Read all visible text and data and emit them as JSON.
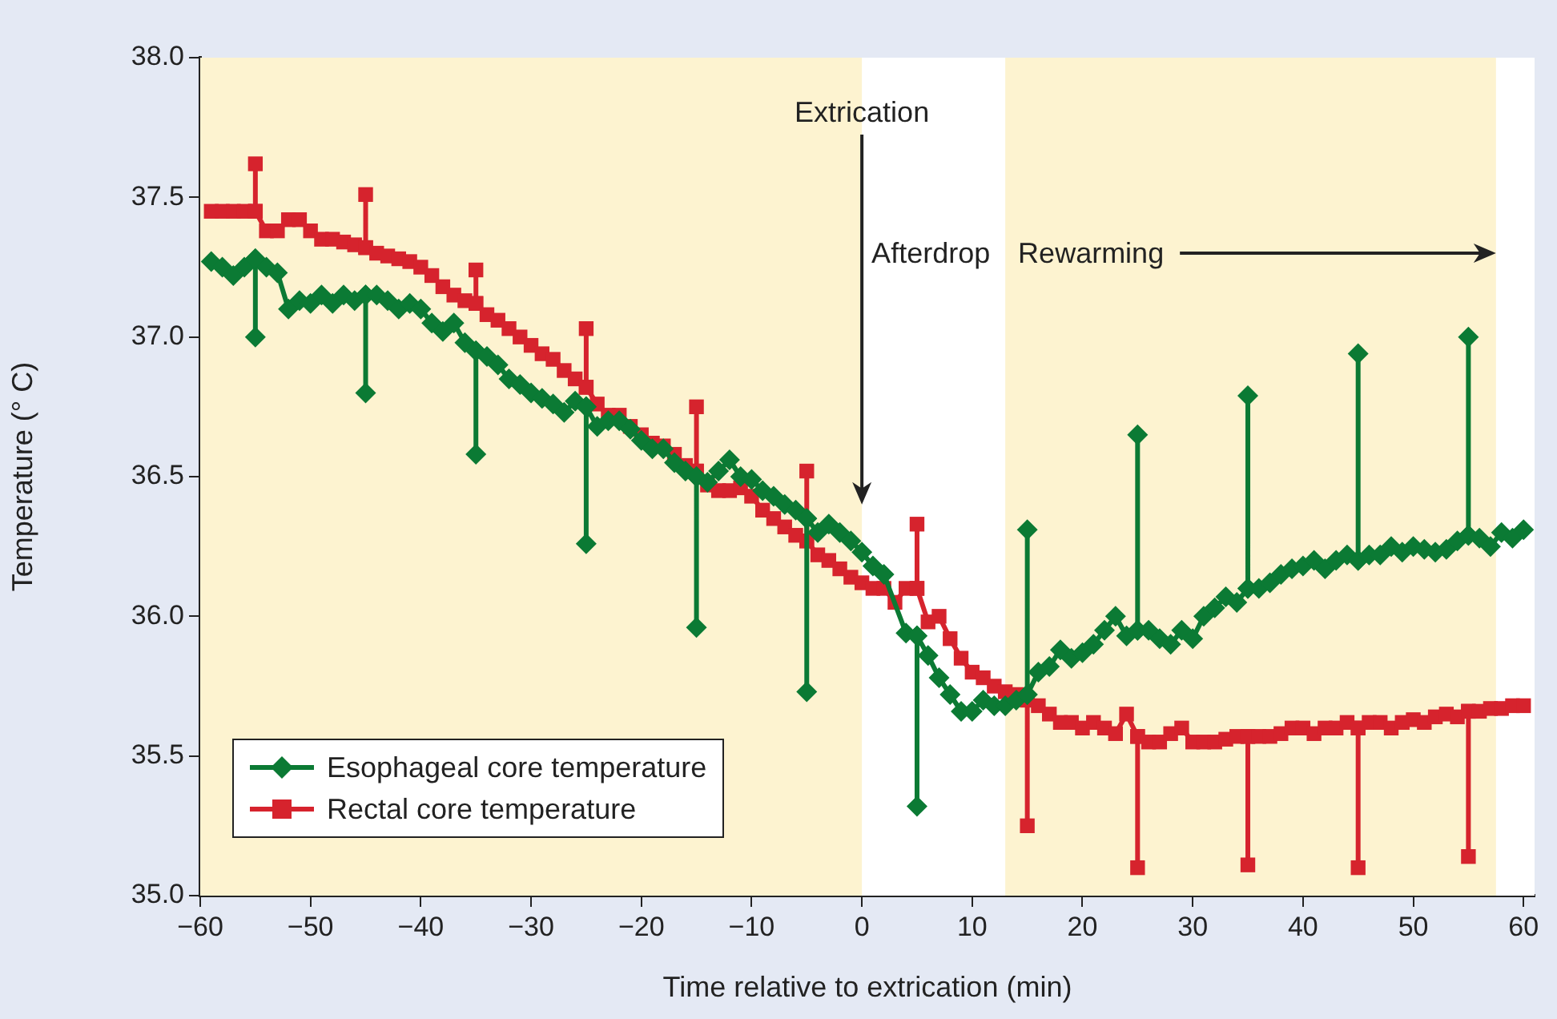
{
  "chart_data": {
    "type": "line",
    "xlabel": "Time relative to extrication (min)",
    "ylabel": "Temperature (° C)",
    "xlim": [
      -60,
      61
    ],
    "xticks": [
      {
        "value": -60,
        "label": "−60"
      },
      {
        "value": -50,
        "label": "−50"
      },
      {
        "value": -40,
        "label": "−40"
      },
      {
        "value": -30,
        "label": "−30"
      },
      {
        "value": -20,
        "label": "−20"
      },
      {
        "value": -10,
        "label": "−10"
      },
      0,
      10,
      20,
      30,
      40,
      50,
      60
    ],
    "ylim": [
      35,
      38
    ],
    "yticks": [
      {
        "value": 35,
        "label": "35.0"
      },
      {
        "value": 35.5,
        "label": "35.5"
      },
      {
        "value": 36,
        "label": "36.0"
      },
      {
        "value": 36.5,
        "label": "36.5"
      },
      {
        "value": 37,
        "label": "37.0"
      },
      {
        "value": 37.5,
        "label": "37.5"
      },
      {
        "value": 38,
        "label": "38.0"
      }
    ],
    "grid": false,
    "legend": "bottom left",
    "line_style": "solid",
    "bands": [
      {
        "axis": "x",
        "from": -60,
        "to": 0,
        "color": "#fdf3d0"
      },
      {
        "axis": "x",
        "from": 13,
        "to": 57.5,
        "label": "Rewarming",
        "color": "#fdf3d0"
      }
    ],
    "annotations": [
      {
        "text": "Extrication",
        "x": 0,
        "y": 36.4
      },
      "Afterdrop"
    ],
    "series": [
      {
        "name": "Esophageal core temperature",
        "color": "#0b7a34",
        "marker": "diamond",
        "x": [
          -59,
          -58,
          -57,
          -56,
          -55,
          -55,
          -55,
          -54,
          -53,
          -52,
          -51,
          -50,
          -49,
          -48,
          -47,
          -46,
          -45,
          -45,
          -45,
          -44,
          -43,
          -42,
          -41,
          -40,
          -39,
          -38,
          -37,
          -36,
          -35,
          -35,
          -35,
          -34,
          -33,
          -32,
          -31,
          -30,
          -29,
          -28,
          -27,
          -26,
          -25,
          -25,
          -25,
          -24,
          -23,
          -22,
          -21,
          -20,
          -19,
          -18,
          -17,
          -16,
          -15,
          -15,
          -15,
          -14,
          -13,
          -12,
          -11,
          -10,
          -9,
          -8,
          -7,
          -6,
          -5,
          -5,
          -5,
          -4,
          -3,
          -2,
          -1,
          0,
          1,
          2,
          4,
          5,
          5,
          5,
          6,
          7,
          8,
          9,
          10,
          11,
          12,
          13,
          14,
          15,
          15,
          15,
          16,
          17,
          18,
          19,
          20,
          21,
          22,
          23,
          24,
          25,
          25,
          25,
          26,
          27,
          28,
          29,
          30,
          31,
          32,
          33,
          34,
          35,
          35,
          35,
          36,
          37,
          38,
          39,
          40,
          41,
          42,
          43,
          44,
          45,
          45,
          45,
          46,
          47,
          48,
          49,
          50,
          51,
          52,
          53,
          54,
          55,
          55,
          55,
          56,
          57,
          58,
          59,
          60
        ],
        "values": [
          37.27,
          37.25,
          37.22,
          37.25,
          37.28,
          37.0,
          37.28,
          37.25,
          37.23,
          37.1,
          37.13,
          37.12,
          37.15,
          37.12,
          37.15,
          37.13,
          37.15,
          36.8,
          37.15,
          37.15,
          37.13,
          37.1,
          37.12,
          37.1,
          37.05,
          37.02,
          37.05,
          36.98,
          36.95,
          36.58,
          36.95,
          36.93,
          36.9,
          36.85,
          36.83,
          36.8,
          36.78,
          36.76,
          36.73,
          36.77,
          36.75,
          36.26,
          36.75,
          36.68,
          36.7,
          36.7,
          36.67,
          36.63,
          36.6,
          36.6,
          36.55,
          36.52,
          36.5,
          35.96,
          36.5,
          36.48,
          36.52,
          36.56,
          36.5,
          36.49,
          36.45,
          36.43,
          36.4,
          36.38,
          36.35,
          35.73,
          36.35,
          36.3,
          36.33,
          36.3,
          36.27,
          36.23,
          36.18,
          36.15,
          35.94,
          35.93,
          35.32,
          35.93,
          35.86,
          35.78,
          35.72,
          35.66,
          35.66,
          35.7,
          35.68,
          35.68,
          35.7,
          35.72,
          36.31,
          35.72,
          35.8,
          35.82,
          35.88,
          35.85,
          35.87,
          35.9,
          35.95,
          36.0,
          35.93,
          35.95,
          36.65,
          35.95,
          35.95,
          35.92,
          35.9,
          35.95,
          35.92,
          36.0,
          36.03,
          36.07,
          36.05,
          36.1,
          36.79,
          36.1,
          36.1,
          36.12,
          36.15,
          36.17,
          36.18,
          36.2,
          36.17,
          36.2,
          36.22,
          36.2,
          36.94,
          36.2,
          36.22,
          36.22,
          36.25,
          36.23,
          36.25,
          36.24,
          36.23,
          36.24,
          36.27,
          36.29,
          37.0,
          36.29,
          36.28,
          36.25,
          36.3,
          36.28,
          36.31
        ]
      },
      {
        "name": "Rectal core temperature",
        "color": "#d6232d",
        "marker": "square",
        "x": [
          -59,
          -58,
          -57,
          -56,
          -55,
          -55,
          -55,
          -54,
          -53,
          -52,
          -51,
          -50,
          -49,
          -48,
          -47,
          -46,
          -45,
          -45,
          -45,
          -44,
          -43,
          -42,
          -41,
          -40,
          -39,
          -38,
          -37,
          -36,
          -35,
          -35,
          -35,
          -34,
          -33,
          -32,
          -31,
          -30,
          -29,
          -28,
          -27,
          -26,
          -25,
          -25,
          -25,
          -24,
          -23,
          -22,
          -21,
          -20,
          -19,
          -18,
          -17,
          -16,
          -15,
          -15,
          -15,
          -14,
          -13,
          -12,
          -11,
          -10,
          -9,
          -8,
          -7,
          -6,
          -5,
          -5,
          -5,
          -4,
          -3,
          -2,
          -1,
          0,
          1,
          2,
          3,
          4,
          5,
          5,
          5,
          6,
          7,
          8,
          9,
          10,
          11,
          12,
          13,
          14,
          15,
          15,
          15,
          16,
          17,
          18,
          19,
          20,
          21,
          22,
          23,
          24,
          25,
          25,
          25,
          26,
          27,
          28,
          29,
          30,
          31,
          32,
          33,
          34,
          35,
          35,
          35,
          36,
          37,
          38,
          39,
          40,
          41,
          42,
          43,
          44,
          45,
          45,
          45,
          46,
          47,
          48,
          49,
          50,
          51,
          52,
          53,
          54,
          55,
          55,
          55,
          56,
          57,
          58,
          59,
          60
        ],
        "values": [
          37.45,
          37.45,
          37.45,
          37.45,
          37.45,
          37.62,
          37.45,
          37.38,
          37.38,
          37.42,
          37.42,
          37.38,
          37.35,
          37.35,
          37.34,
          37.33,
          37.32,
          37.51,
          37.32,
          37.3,
          37.29,
          37.28,
          37.27,
          37.25,
          37.22,
          37.18,
          37.15,
          37.13,
          37.12,
          37.24,
          37.12,
          37.08,
          37.06,
          37.03,
          37.0,
          36.97,
          36.94,
          36.92,
          36.88,
          36.85,
          36.82,
          37.03,
          36.82,
          36.76,
          36.72,
          36.72,
          36.68,
          36.65,
          36.62,
          36.61,
          36.58,
          36.54,
          36.52,
          36.75,
          36.52,
          36.47,
          36.45,
          36.45,
          36.46,
          36.43,
          36.38,
          36.35,
          36.32,
          36.29,
          36.27,
          36.52,
          36.27,
          36.22,
          36.2,
          36.17,
          36.14,
          36.12,
          36.1,
          36.1,
          36.05,
          36.1,
          36.1,
          36.33,
          36.1,
          35.98,
          36.0,
          35.92,
          35.85,
          35.8,
          35.78,
          35.75,
          35.73,
          35.72,
          35.7,
          35.25,
          35.7,
          35.68,
          35.65,
          35.62,
          35.62,
          35.6,
          35.62,
          35.6,
          35.58,
          35.65,
          35.57,
          35.1,
          35.57,
          35.55,
          35.55,
          35.58,
          35.6,
          35.55,
          35.55,
          35.55,
          35.56,
          35.57,
          35.57,
          35.11,
          35.57,
          35.57,
          35.57,
          35.58,
          35.6,
          35.6,
          35.58,
          35.6,
          35.6,
          35.62,
          35.6,
          35.1,
          35.6,
          35.62,
          35.62,
          35.6,
          35.62,
          35.63,
          35.62,
          35.64,
          35.65,
          35.64,
          35.66,
          35.14,
          35.66,
          35.66,
          35.67,
          35.67,
          35.68,
          35.68
        ]
      }
    ]
  }
}
